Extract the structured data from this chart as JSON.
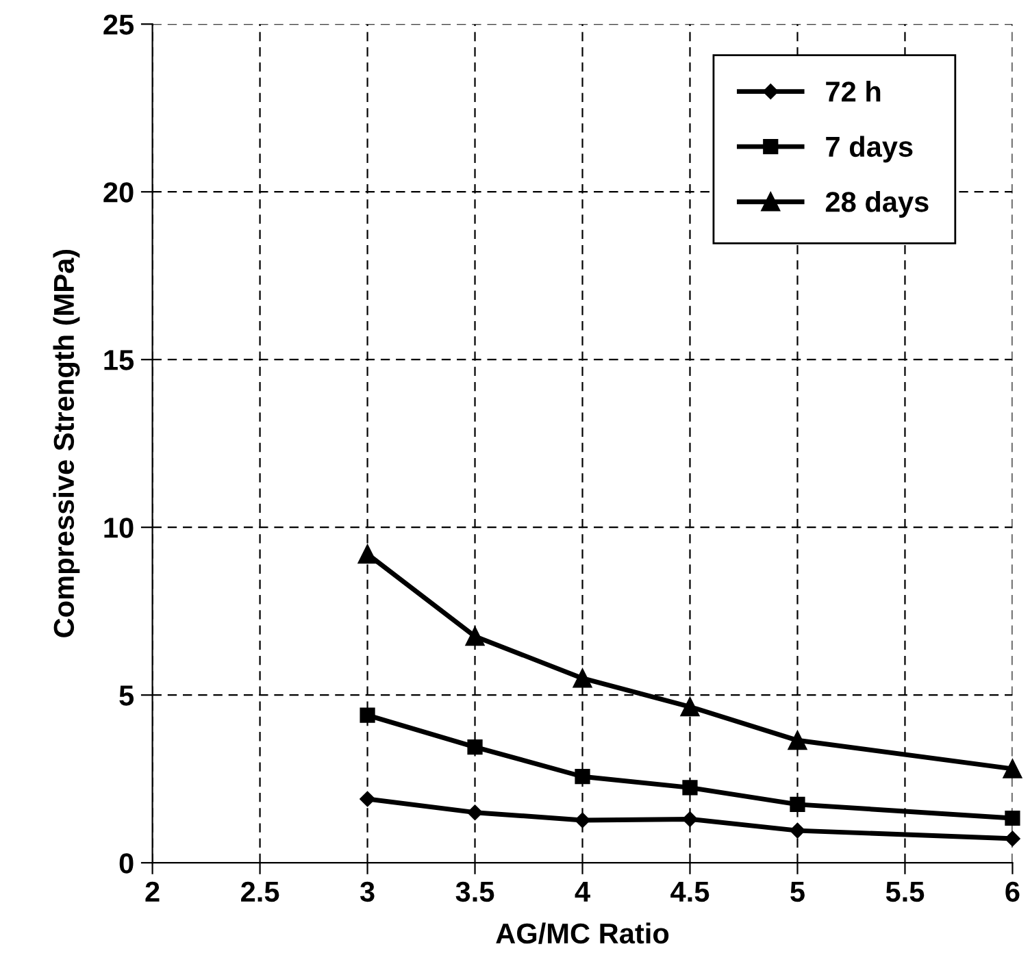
{
  "chart_data": {
    "type": "line",
    "xlabel": "AG/MC Ratio",
    "ylabel": "Compressive Strength (MPa)",
    "x": [
      3,
      3.5,
      4,
      4.5,
      5,
      6
    ],
    "series": [
      {
        "name": "72 h",
        "color": "#000000",
        "marker": "diamond",
        "values": [
          1.9,
          1.5,
          1.27,
          1.3,
          0.96,
          0.72
        ]
      },
      {
        "name": "7 days",
        "color": "#000000",
        "marker": "square",
        "values": [
          4.4,
          3.45,
          2.57,
          2.24,
          1.74,
          1.33
        ]
      },
      {
        "name": "28 days",
        "color": "#000000",
        "marker": "triangle",
        "values": [
          9.2,
          6.75,
          5.5,
          4.65,
          3.65,
          2.8
        ]
      }
    ],
    "xlim": [
      2,
      6
    ],
    "xticks": [
      2,
      2.5,
      3,
      3.5,
      4,
      4.5,
      5,
      5.5,
      6
    ],
    "ylim": [
      0,
      25
    ],
    "yticks": [
      0,
      5,
      10,
      15,
      20,
      25
    ],
    "grid": true,
    "legend": "top right",
    "line_style": "solid"
  }
}
